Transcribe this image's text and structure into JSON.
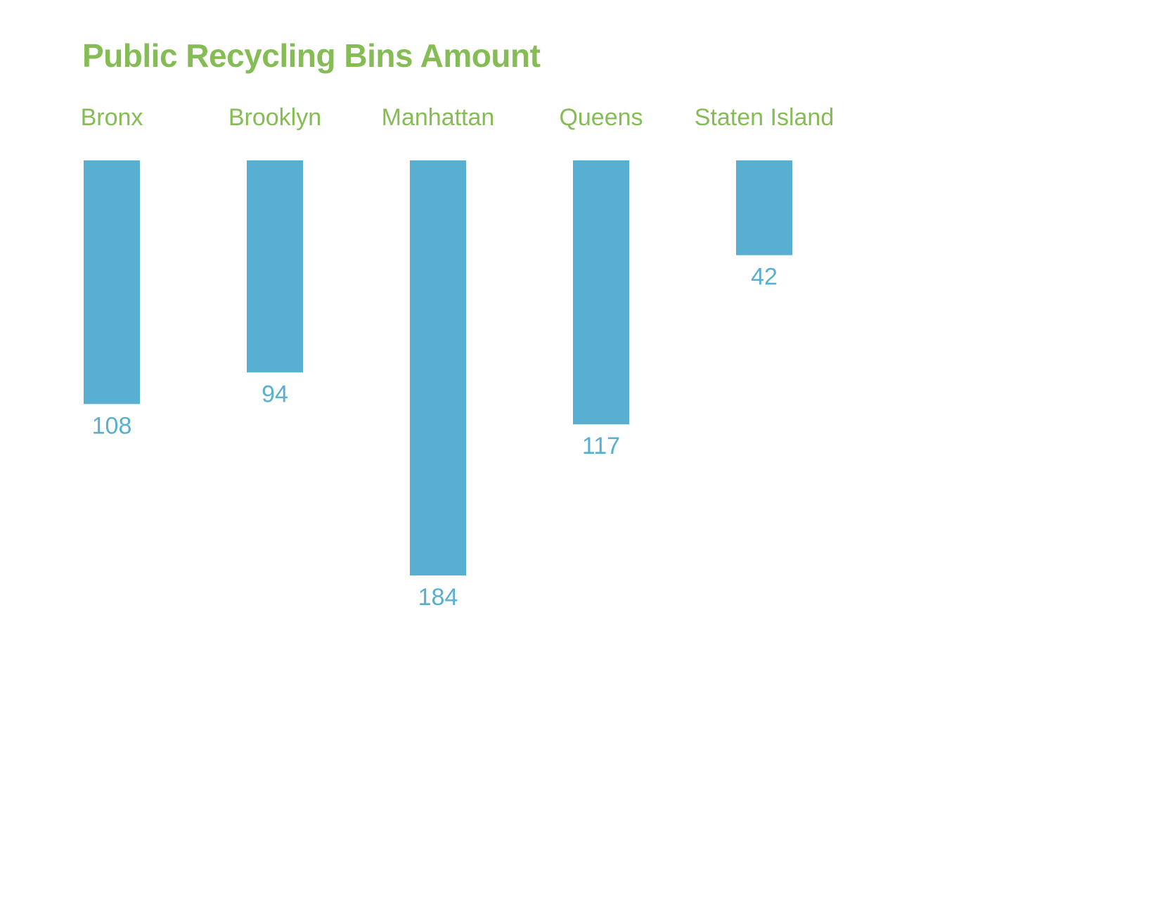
{
  "colors": {
    "title": "#86bc55",
    "category_label": "#86bc55",
    "bar": "#59afcf",
    "value_label": "#59afcf",
    "background": "#ffffff"
  },
  "chart_data": {
    "type": "bar",
    "orientation": "vertical-downward",
    "title": "Public Recycling Bins Amount",
    "xlabel": "",
    "ylabel": "",
    "categories": [
      "Bronx",
      "Brooklyn",
      "Manhattan",
      "Queens",
      "Staten Island"
    ],
    "values": [
      108,
      94,
      184,
      117,
      42
    ],
    "ylim": [
      0,
      184
    ],
    "grid": false,
    "legend": "none",
    "category_labels_position": "top",
    "value_labels_position": "below-bar"
  }
}
